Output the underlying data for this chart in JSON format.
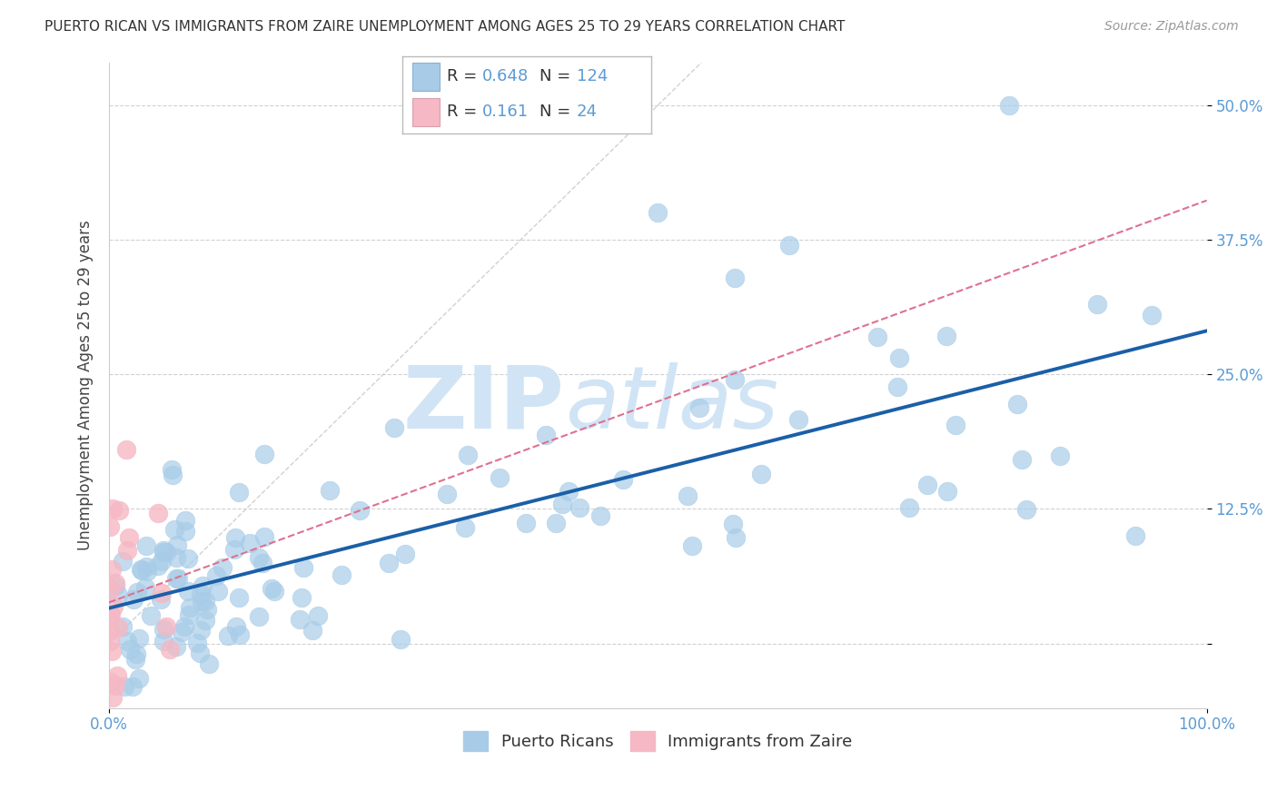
{
  "title": "PUERTO RICAN VS IMMIGRANTS FROM ZAIRE UNEMPLOYMENT AMONG AGES 25 TO 29 YEARS CORRELATION CHART",
  "source": "Source: ZipAtlas.com",
  "ylabel": "Unemployment Among Ages 25 to 29 years",
  "xlim": [
    0,
    1.0
  ],
  "ylim": [
    -0.06,
    0.54
  ],
  "x_tick_pos": [
    0.0,
    1.0
  ],
  "x_tick_labels": [
    "0.0%",
    "100.0%"
  ],
  "y_tick_pos": [
    0.0,
    0.125,
    0.25,
    0.375,
    0.5
  ],
  "y_tick_labels": [
    "",
    "12.5%",
    "25.0%",
    "37.5%",
    "50.0%"
  ],
  "grid_color": "#cccccc",
  "background_color": "#ffffff",
  "watermark_zip": "ZIP",
  "watermark_atlas": "atlas",
  "watermark_color": "#d0e4f5",
  "blue_R": "0.648",
  "blue_N": "124",
  "pink_R": "0.161",
  "pink_N": "24",
  "blue_color": "#a8cce8",
  "pink_color": "#f5b8c4",
  "blue_legend_label": "Puerto Ricans",
  "pink_legend_label": "Immigrants from Zaire",
  "trend_blue_color": "#1a5fa8",
  "trend_pink_color": "#e07090",
  "tick_color": "#5b9bd5",
  "seed": 42
}
